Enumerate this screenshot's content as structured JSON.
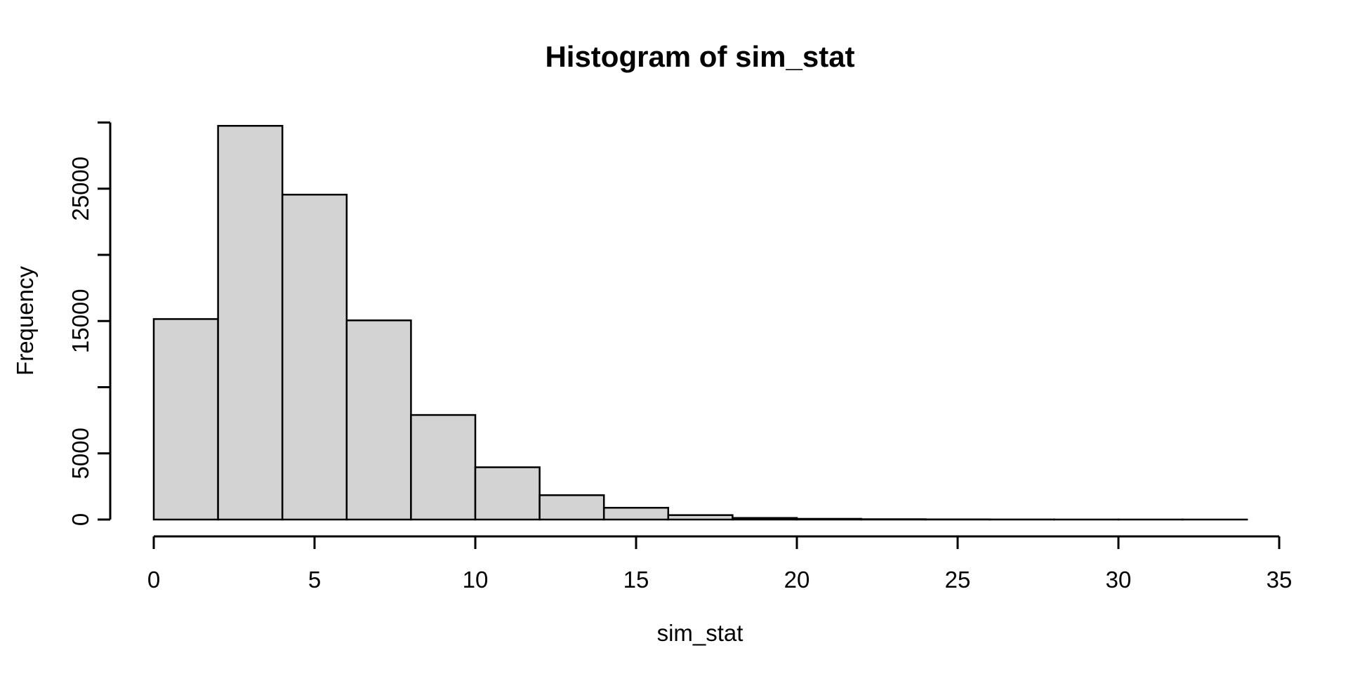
{
  "page": {
    "background_color": "#ffffff",
    "text_color": "#000000"
  },
  "chart_data": {
    "type": "bar",
    "subtype": "histogram",
    "title": "Histogram of sim_stat",
    "xlabel": "sim_stat",
    "ylabel": "Frequency",
    "bin_edges": [
      0,
      2,
      4,
      6,
      8,
      10,
      12,
      14,
      16,
      18,
      20,
      22,
      24,
      26,
      28,
      30,
      32,
      34
    ],
    "counts": [
      15150,
      29750,
      24550,
      15050,
      7900,
      3950,
      1840,
      890,
      335,
      120,
      55,
      25,
      12,
      6,
      3,
      2,
      1
    ],
    "xlim": [
      0,
      35
    ],
    "ylim": [
      0,
      30000
    ],
    "x_ticks": [
      0,
      5,
      10,
      15,
      20,
      25,
      30,
      35
    ],
    "x_tick_labels": [
      "0",
      "5",
      "10",
      "15",
      "20",
      "25",
      "30",
      "35"
    ],
    "y_ticks": [
      0,
      5000,
      10000,
      15000,
      20000,
      25000,
      30000
    ],
    "y_tick_labels": [
      "0",
      "5000",
      "",
      "15000",
      "",
      "25000",
      ""
    ],
    "grid": false,
    "legend": null,
    "bar_fill": "#d3d3d3",
    "bar_stroke": "#000000",
    "axis_color": "#000000"
  }
}
